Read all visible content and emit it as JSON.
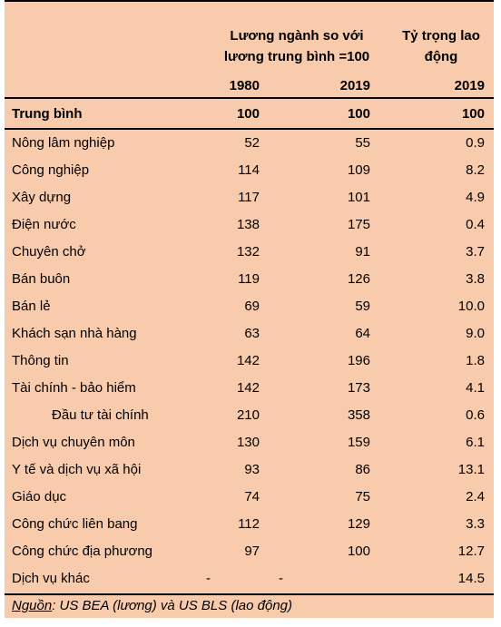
{
  "header": {
    "wage_title_line1": "Lương ngành so với",
    "wage_title_line2": "lương trung bình =100",
    "share_title_line1": "Tỷ trọng lao",
    "share_title_line2": "động",
    "col_1980": "1980",
    "col_2019_wage": "2019",
    "col_2019_share": "2019"
  },
  "average": {
    "label": "Trung bình",
    "w1980": "100",
    "w2019": "100",
    "share": "100"
  },
  "rows": [
    {
      "label": "Nông lâm nghiệp",
      "w1980": "52",
      "w2019": "55",
      "share": "0.9"
    },
    {
      "label": "Công nghiệp",
      "w1980": "114",
      "w2019": "109",
      "share": "8.2"
    },
    {
      "label": "Xây dựng",
      "w1980": "117",
      "w2019": "101",
      "share": "4.9"
    },
    {
      "label": "Điện nước",
      "w1980": "138",
      "w2019": "175",
      "share": "0.4"
    },
    {
      "label": "Chuyên chở",
      "w1980": "132",
      "w2019": "91",
      "share": "3.7"
    },
    {
      "label": "Bán buôn",
      "w1980": "119",
      "w2019": "126",
      "share": "3.8"
    },
    {
      "label": "Bán lẻ",
      "w1980": "69",
      "w2019": "59",
      "share": "10.0"
    },
    {
      "label": "Khách sạn nhà hàng",
      "w1980": "63",
      "w2019": "64",
      "share": "9.0"
    },
    {
      "label": "Thông tin",
      "w1980": "142",
      "w2019": "196",
      "share": "1.8"
    },
    {
      "label": "Tài chính - bảo hiểm",
      "w1980": "142",
      "w2019": "173",
      "share": "4.1"
    },
    {
      "label": "Đầu tư tài chính",
      "w1980": "210",
      "w2019": "358",
      "share": "0.6"
    },
    {
      "label": "Dịch vụ chuyên môn",
      "w1980": "130",
      "w2019": "159",
      "share": "6.1"
    },
    {
      "label": "Y tế và dịch vụ xã hội",
      "w1980": "93",
      "w2019": "86",
      "share": "13.1"
    },
    {
      "label": "Giáo dục",
      "w1980": "74",
      "w2019": "75",
      "share": "2.4"
    },
    {
      "label": "Công chức liên bang",
      "w1980": "112",
      "w2019": "129",
      "share": "3.3"
    },
    {
      "label": "Công chức địa phương",
      "w1980": "97",
      "w2019": "100",
      "share": "12.7"
    }
  ],
  "last_row": {
    "label": "Dịch vụ khác",
    "w1980": "-",
    "w2019": "-",
    "share": "14.5"
  },
  "source": {
    "prefix": "Nguồn",
    "text": ": US BEA (lương) và US BLS (lao động)"
  }
}
